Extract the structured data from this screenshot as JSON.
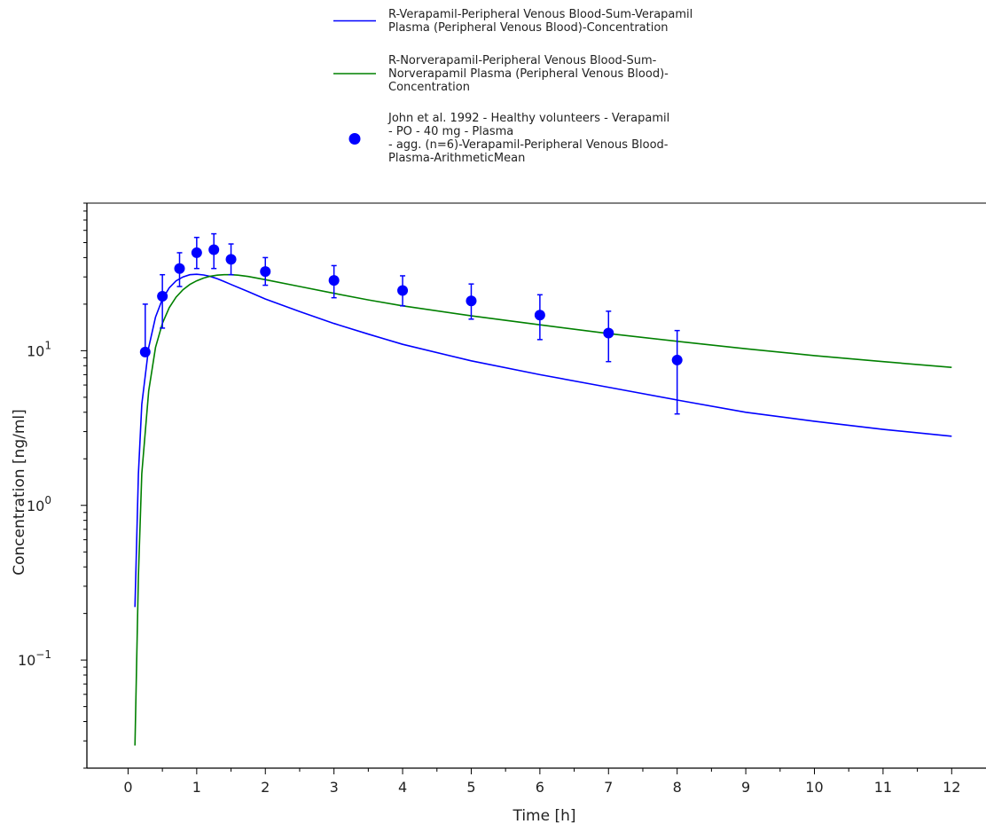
{
  "chart_data": {
    "type": "line",
    "xlabel": "Time [h]",
    "ylabel": "Concentration [ng/ml]",
    "xlim": [
      -0.6,
      12.5
    ],
    "ylim": [
      0.02,
      90
    ],
    "yscale": "log",
    "grid": false,
    "legend_position": "top-center",
    "x_ticks": [
      {
        "value": 0,
        "label": "0"
      },
      {
        "value": 1,
        "label": "1"
      },
      {
        "value": 2,
        "label": "2"
      },
      {
        "value": 3,
        "label": "3"
      },
      {
        "value": 4,
        "label": "4"
      },
      {
        "value": 5,
        "label": "5"
      },
      {
        "value": 6,
        "label": "6"
      },
      {
        "value": 7,
        "label": "7"
      },
      {
        "value": 8,
        "label": "8"
      },
      {
        "value": 9,
        "label": "9"
      },
      {
        "value": 10,
        "label": "10"
      },
      {
        "value": 11,
        "label": "11"
      },
      {
        "value": 12,
        "label": "12"
      }
    ],
    "y_ticks": [
      {
        "value": 0.1,
        "base": "10",
        "exp": "−1"
      },
      {
        "value": 1,
        "base": "10",
        "exp": "0"
      },
      {
        "value": 10,
        "base": "10",
        "exp": "1"
      }
    ],
    "series": [
      {
        "name": "R-Verapamil-Peripheral Venous Blood-Sum-Verapamil Plasma (Peripheral Venous Blood)-Concentration",
        "legend_lines": [
          "R-Verapamil-Peripheral Venous Blood-Sum-Verapamil",
          "Plasma (Peripheral Venous Blood)-Concentration"
        ],
        "kind": "line",
        "color": "#0000ff",
        "x": [
          0.1,
          0.15,
          0.2,
          0.3,
          0.4,
          0.5,
          0.6,
          0.7,
          0.8,
          0.9,
          1.0,
          1.1,
          1.2,
          1.3,
          1.4,
          1.5,
          1.75,
          2.0,
          2.5,
          3.0,
          3.5,
          4.0,
          5.0,
          6.0,
          7.0,
          8.0,
          9.0,
          10.0,
          11.0,
          12.0
        ],
        "y": [
          0.22,
          1.6,
          4.5,
          10.5,
          16.5,
          21.5,
          25.5,
          28.3,
          30.0,
          31.0,
          31.2,
          30.9,
          30.2,
          29.2,
          28.0,
          26.8,
          24.1,
          21.6,
          17.9,
          15.0,
          12.8,
          11.0,
          8.6,
          7.0,
          5.8,
          4.8,
          4.0,
          3.5,
          3.1,
          2.8
        ]
      },
      {
        "name": "R-Norverapamil-Peripheral Venous Blood-Sum-Norverapamil Plasma (Peripheral Venous Blood)-Concentration",
        "legend_lines": [
          "R-Norverapamil-Peripheral Venous Blood-Sum-",
          "Norverapamil Plasma (Peripheral Venous Blood)-",
          "Concentration"
        ],
        "kind": "line",
        "color": "#008000",
        "x": [
          0.1,
          0.15,
          0.2,
          0.3,
          0.4,
          0.5,
          0.6,
          0.7,
          0.8,
          0.9,
          1.0,
          1.1,
          1.2,
          1.3,
          1.4,
          1.5,
          1.6,
          1.75,
          2.0,
          2.5,
          3.0,
          3.5,
          4.0,
          5.0,
          6.0,
          7.0,
          8.0,
          9.0,
          10.0,
          11.0,
          12.0
        ],
        "y": [
          0.028,
          0.35,
          1.6,
          5.5,
          10.5,
          15.0,
          19.0,
          22.2,
          24.8,
          26.8,
          28.3,
          29.5,
          30.3,
          30.8,
          31.0,
          31.0,
          30.8,
          30.2,
          28.8,
          26.0,
          23.5,
          21.3,
          19.5,
          16.8,
          14.7,
          12.9,
          11.5,
          10.3,
          9.3,
          8.5,
          7.8
        ]
      },
      {
        "name": "John et al. 1992 - Healthy volunteers - Verapamil - PO - 40 mg - Plasma - agg. (n=6)-Verapamil-Peripheral Venous Blood-Plasma-ArithmeticMean",
        "legend_lines": [
          "John et al. 1992 - Healthy volunteers - Verapamil",
          "- PO - 40 mg - Plasma",
          "- agg. (n=6)-Verapamil-Peripheral Venous Blood-",
          "Plasma-ArithmeticMean"
        ],
        "kind": "scatter",
        "color": "#0000ff",
        "x": [
          0.25,
          0.5,
          0.75,
          1.0,
          1.25,
          1.5,
          2.0,
          3.0,
          4.0,
          5.0,
          6.0,
          7.0,
          8.0
        ],
        "y": [
          9.8,
          22.5,
          34.0,
          43.0,
          45.0,
          39.0,
          32.5,
          28.5,
          24.5,
          21.0,
          17.0,
          13.0,
          8.7
        ],
        "y_lower": [
          9.8,
          14.0,
          26.0,
          34.0,
          34.0,
          31.0,
          26.5,
          22.0,
          19.5,
          16.0,
          11.8,
          8.5,
          3.9
        ],
        "y_upper": [
          20.0,
          31.0,
          43.0,
          54.0,
          57.0,
          49.0,
          40.0,
          35.5,
          30.5,
          27.0,
          23.0,
          18.0,
          13.5
        ]
      }
    ]
  }
}
